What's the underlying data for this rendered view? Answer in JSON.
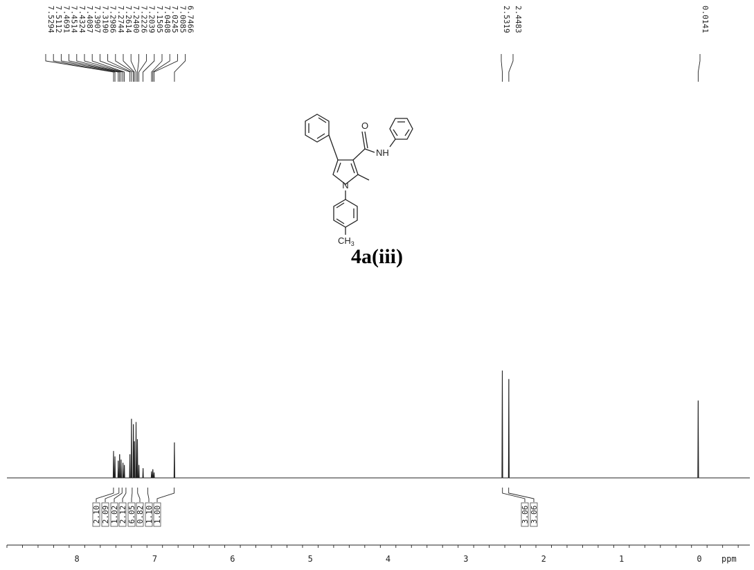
{
  "chart_data": {
    "type": "line",
    "title": "",
    "xlabel": "",
    "x_unit": "ppm",
    "ylabel": "",
    "xlim": [
      8.9,
      -0.65
    ],
    "x_reversed": true,
    "x_ticks": [
      8,
      7,
      6,
      5,
      4,
      3,
      2,
      1,
      0
    ],
    "grid": false,
    "peak_labels": [
      "7.5294",
      "7.5112",
      "7.4691",
      "7.4514",
      "7.4324",
      "7.4087",
      "7.3907",
      "7.3190",
      "7.2986",
      "7.2744",
      "7.2614",
      "7.2400",
      "7.2226",
      "7.2039",
      "7.1505",
      "7.0408",
      "7.0245",
      "7.0085",
      "6.7466",
      "2.5319",
      "2.4483",
      "0.0141"
    ],
    "peaks": [
      {
        "shift": 7.5294,
        "intensity": 0.25
      },
      {
        "shift": 7.5112,
        "intensity": 0.2
      },
      {
        "shift": 7.4691,
        "intensity": 0.16
      },
      {
        "shift": 7.4514,
        "intensity": 0.22
      },
      {
        "shift": 7.4324,
        "intensity": 0.17
      },
      {
        "shift": 7.4087,
        "intensity": 0.14
      },
      {
        "shift": 7.3907,
        "intensity": 0.12
      },
      {
        "shift": 7.319,
        "intensity": 0.22
      },
      {
        "shift": 7.2986,
        "intensity": 0.55
      },
      {
        "shift": 7.2744,
        "intensity": 0.5
      },
      {
        "shift": 7.2614,
        "intensity": 0.34
      },
      {
        "shift": 7.24,
        "intensity": 0.52
      },
      {
        "shift": 7.2226,
        "intensity": 0.36
      },
      {
        "shift": 7.2039,
        "intensity": 0.12
      },
      {
        "shift": 7.1505,
        "intensity": 0.09
      },
      {
        "shift": 7.0408,
        "intensity": 0.06
      },
      {
        "shift": 7.0245,
        "intensity": 0.08
      },
      {
        "shift": 7.0085,
        "intensity": 0.05
      },
      {
        "shift": 6.7466,
        "intensity": 0.33
      },
      {
        "shift": 2.5319,
        "intensity": 1.0
      },
      {
        "shift": 2.4483,
        "intensity": 0.92
      },
      {
        "shift": 0.0141,
        "intensity": 0.72
      }
    ],
    "integrals": [
      {
        "value": "2.10",
        "shift": 7.53
      },
      {
        "value": "2.09",
        "shift": 7.46
      },
      {
        "value": "1.02",
        "shift": 7.42
      },
      {
        "value": "2.12",
        "shift": 7.37
      },
      {
        "value": "6.05",
        "shift": 7.29
      },
      {
        "value": "0.82",
        "shift": 7.22
      },
      {
        "value": "1.10",
        "shift": 7.09
      },
      {
        "value": "1.00",
        "shift": 6.75
      },
      {
        "value": "3.06",
        "shift": 2.53
      },
      {
        "value": "3.06",
        "shift": 2.45
      }
    ]
  },
  "structure": {
    "labels": [
      "O",
      "NH",
      "N",
      "CH3"
    ]
  },
  "compound_label": "4a(iii)"
}
